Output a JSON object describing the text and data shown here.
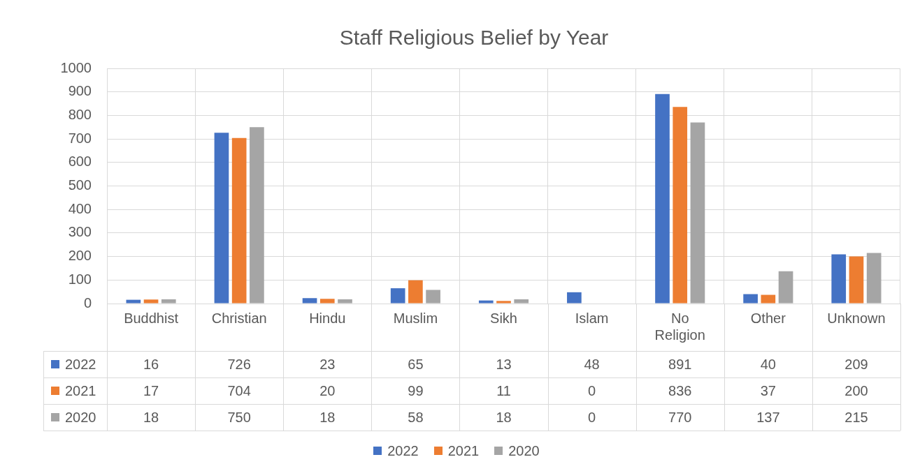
{
  "chart_data": {
    "type": "bar",
    "title": "Staff Religious Belief by Year",
    "categories": [
      "Buddhist",
      "Christian",
      "Hindu",
      "Muslim",
      "Sikh",
      "Islam",
      "No Religion",
      "Other",
      "Unknown"
    ],
    "series": [
      {
        "name": "2022",
        "color": "#4472c4",
        "values": [
          16,
          726,
          23,
          65,
          13,
          48,
          891,
          40,
          209
        ]
      },
      {
        "name": "2021",
        "color": "#ed7d31",
        "values": [
          17,
          704,
          20,
          99,
          11,
          0,
          836,
          37,
          200
        ]
      },
      {
        "name": "2020",
        "color": "#a5a5a5",
        "values": [
          18,
          750,
          18,
          58,
          18,
          0,
          770,
          137,
          215
        ]
      }
    ],
    "ylim": [
      0,
      1000
    ],
    "yticks": [
      0,
      100,
      200,
      300,
      400,
      500,
      600,
      700,
      800,
      900,
      1000
    ],
    "grid": true,
    "legend": "bottom",
    "data_labels": true
  }
}
